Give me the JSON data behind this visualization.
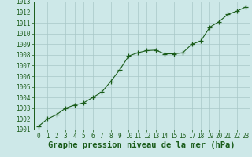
{
  "x": [
    0,
    1,
    2,
    3,
    4,
    5,
    6,
    7,
    8,
    9,
    10,
    11,
    12,
    13,
    14,
    15,
    16,
    17,
    18,
    19,
    20,
    21,
    22,
    23
  ],
  "y": [
    1001.3,
    1002.0,
    1002.4,
    1003.0,
    1003.3,
    1003.5,
    1004.0,
    1004.5,
    1005.5,
    1006.6,
    1007.9,
    1008.2,
    1008.4,
    1008.45,
    1008.1,
    1008.1,
    1008.2,
    1009.0,
    1009.3,
    1010.6,
    1011.1,
    1011.8,
    1012.1,
    1012.5
  ],
  "ylim": [
    1001,
    1013
  ],
  "xlim_min": -0.5,
  "xlim_max": 23.4,
  "yticks": [
    1001,
    1002,
    1003,
    1004,
    1005,
    1006,
    1007,
    1008,
    1009,
    1010,
    1011,
    1012,
    1013
  ],
  "xticks": [
    0,
    1,
    2,
    3,
    4,
    5,
    6,
    7,
    8,
    9,
    10,
    11,
    12,
    13,
    14,
    15,
    16,
    17,
    18,
    19,
    20,
    21,
    22,
    23
  ],
  "xlabel": "Graphe pression niveau de la mer (hPa)",
  "line_color": "#1a5c1a",
  "marker": "+",
  "marker_size": 4,
  "marker_color": "#1a5c1a",
  "bg_color": "#cde8e8",
  "grid_color": "#a8c8c8",
  "border_color": "#1a5c1a",
  "xlabel_color": "#1a5c1a",
  "tick_color": "#1a5c1a",
  "tick_fontsize": 5.5,
  "xlabel_fontsize": 7.5
}
